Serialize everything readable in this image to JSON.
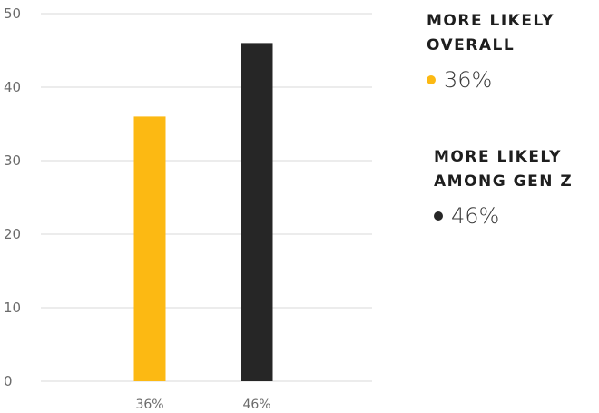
{
  "chart_data": {
    "type": "bar",
    "categories": [
      "36%",
      "46%"
    ],
    "values": [
      36,
      46
    ],
    "colors": [
      "#fcb913",
      "#262626"
    ],
    "ylim": [
      0,
      50
    ],
    "yticks": [
      0,
      10,
      20,
      30,
      40,
      50
    ],
    "grid": true,
    "legend_placement": "right"
  },
  "legend": [
    {
      "title": "MORE LIKELY OVERALL",
      "value": "36%",
      "color": "#fcb913"
    },
    {
      "title": "MORE LIKELY AMONG GEN Z",
      "value": "46%",
      "color": "#262626"
    }
  ]
}
